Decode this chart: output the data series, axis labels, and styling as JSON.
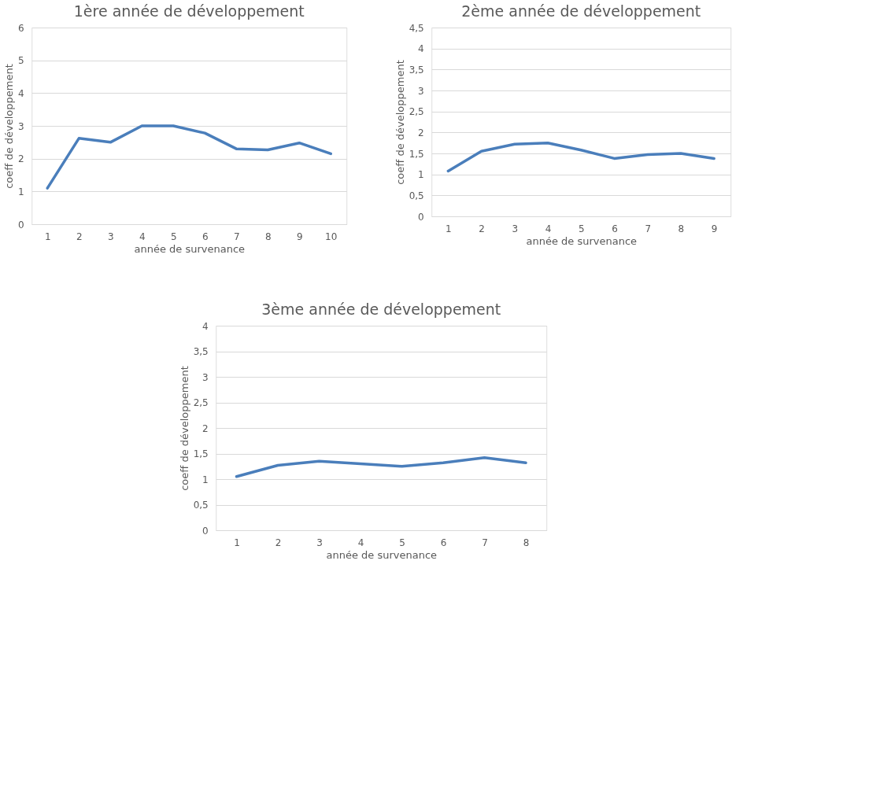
{
  "chart_data": [
    {
      "type": "line",
      "title": "1ère année de développement",
      "xlabel": "année de survenance",
      "ylabel": "coeff de développement",
      "categories": [
        "1",
        "2",
        "3",
        "4",
        "5",
        "6",
        "7",
        "8",
        "9",
        "10"
      ],
      "series": [
        {
          "color": "#4a7ebb",
          "values": [
            1.1,
            2.62,
            2.5,
            3.0,
            3.0,
            2.78,
            2.3,
            2.27,
            2.48,
            2.15
          ]
        }
      ],
      "ylim": [
        0,
        6
      ],
      "yticks": [
        0,
        1,
        2,
        3,
        4,
        5,
        6
      ],
      "grid": "y",
      "marker": "none",
      "line_style": "solid"
    },
    {
      "type": "line",
      "title": "2ème année de développement",
      "xlabel": "année de survenance",
      "ylabel": "coeff de développement",
      "categories": [
        "1",
        "2",
        "3",
        "4",
        "5",
        "6",
        "7",
        "8",
        "9"
      ],
      "series": [
        {
          "color": "#4a7ebb",
          "values": [
            1.08,
            1.55,
            1.72,
            1.75,
            1.58,
            1.38,
            1.47,
            1.5,
            1.38
          ]
        }
      ],
      "ylim": [
        0,
        4.5
      ],
      "yticks": [
        0,
        {
          "value": 0.5,
          "label": "0,5"
        },
        1,
        {
          "value": 1.5,
          "label": "1,5"
        },
        2,
        {
          "value": 2.5,
          "label": "2,5"
        },
        3,
        {
          "value": 3.5,
          "label": "3,5"
        },
        4,
        {
          "value": 4.5,
          "label": "4,5"
        }
      ],
      "grid": "y",
      "marker": "none",
      "line_style": "solid"
    },
    {
      "type": "line",
      "title": "3ème année de développement",
      "xlabel": "année de survenance",
      "ylabel": "coeff de développement",
      "categories": [
        "1",
        "2",
        "3",
        "4",
        "5",
        "6",
        "7",
        "8"
      ],
      "series": [
        {
          "color": "#4a7ebb",
          "values": [
            1.05,
            1.27,
            1.35,
            1.3,
            1.25,
            1.32,
            1.42,
            1.32
          ]
        }
      ],
      "ylim": [
        0,
        4
      ],
      "yticks": [
        0,
        {
          "value": 0.5,
          "label": "0,5"
        },
        1,
        {
          "value": 1.5,
          "label": "1,5"
        },
        2,
        {
          "value": 2.5,
          "label": "2,5"
        },
        3,
        {
          "value": 3.5,
          "label": "3,5"
        },
        4
      ],
      "grid": "y",
      "marker": "none",
      "line_style": "solid"
    }
  ]
}
